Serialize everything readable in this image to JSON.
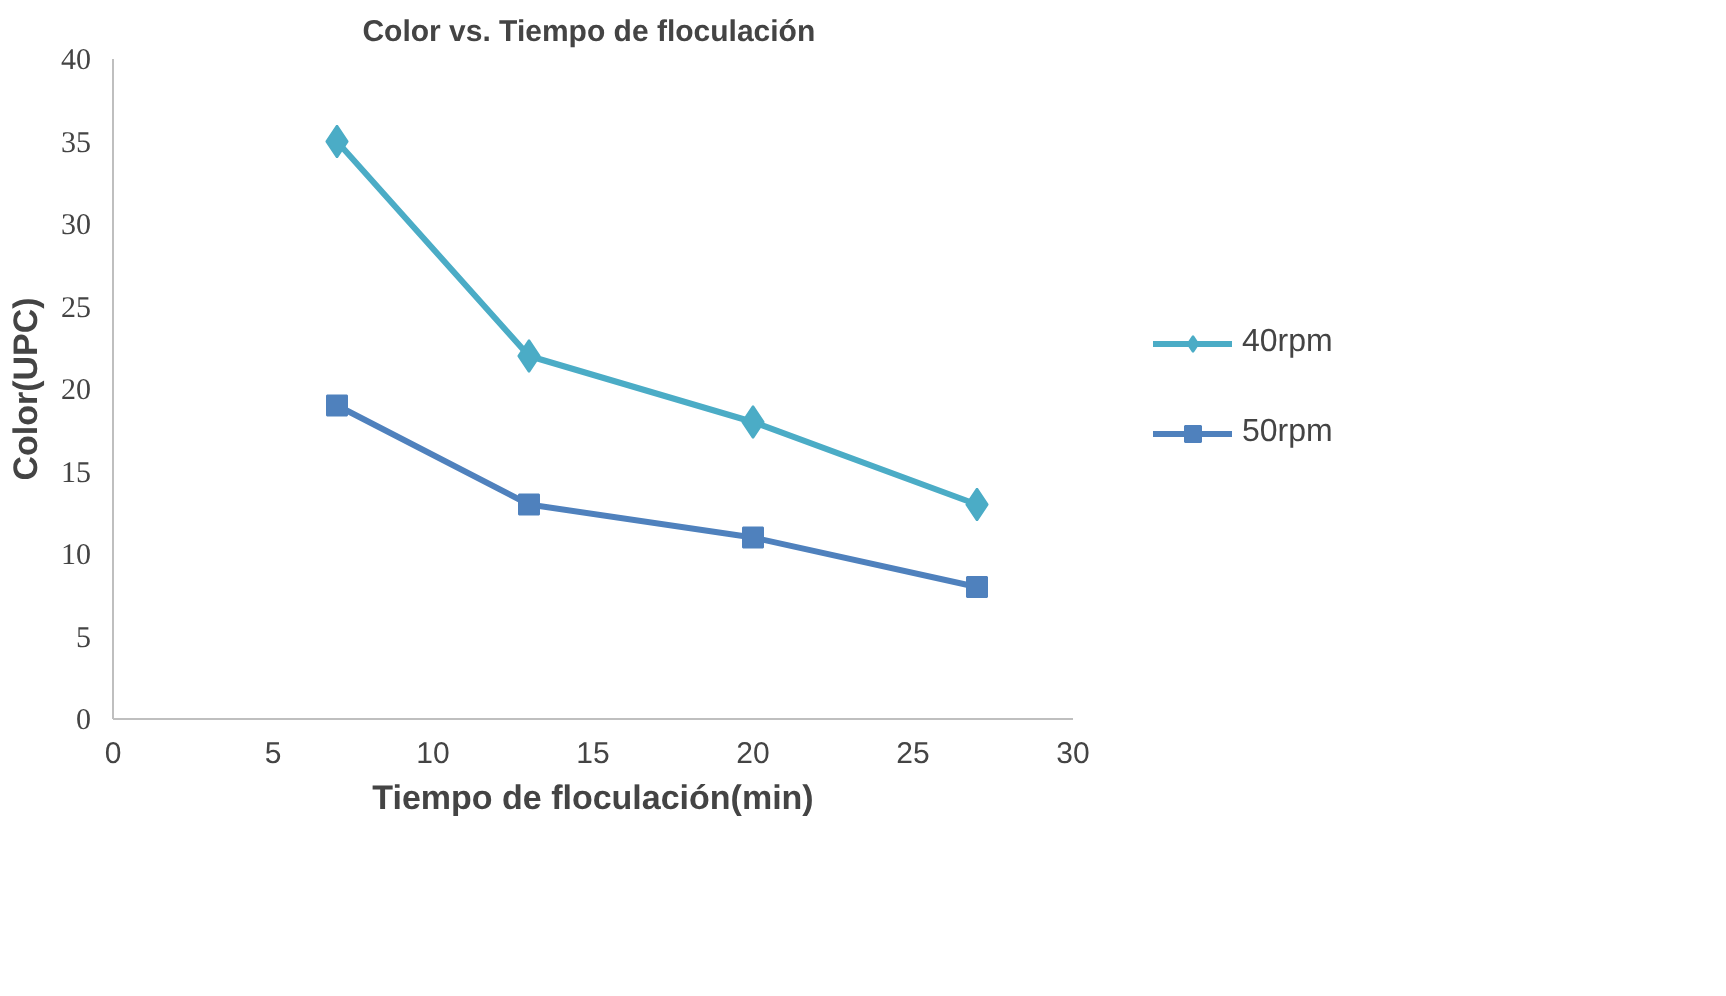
{
  "chart_data": {
    "type": "line",
    "title": "Color  vs. Tiempo de floculación",
    "xlabel": "Tiempo de floculación(min)",
    "ylabel": "Color(UPC)",
    "x": [
      7,
      13,
      20,
      27
    ],
    "series": [
      {
        "name": "40rpm",
        "color": "#4bacc6",
        "marker": "diamond",
        "values": [
          35,
          22,
          18,
          13
        ]
      },
      {
        "name": "50rpm",
        "color": "#4f81bd",
        "marker": "square",
        "values": [
          19,
          13,
          11,
          8
        ]
      }
    ],
    "xlim": [
      0,
      30
    ],
    "xticks": [
      0,
      5,
      10,
      15,
      20,
      25,
      30
    ],
    "ylim": [
      0,
      40
    ],
    "yticks": [
      0,
      5,
      10,
      15,
      20,
      25,
      30,
      35,
      40
    ],
    "grid": false,
    "legend": "right",
    "line_style": "solid"
  }
}
